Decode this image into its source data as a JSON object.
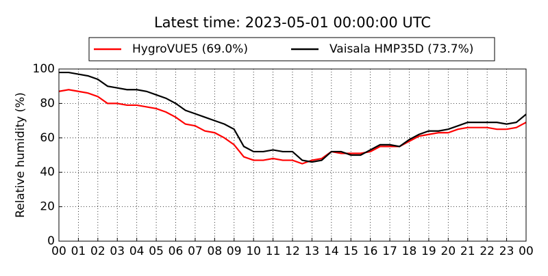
{
  "chart_data": {
    "type": "line",
    "title": "Latest time: 2023-05-01 00:00:00 UTC",
    "ylabel": "Relative humidity (%)",
    "x": [
      0,
      0.5,
      1,
      1.5,
      2,
      2.5,
      3,
      3.5,
      4,
      4.5,
      5,
      5.5,
      6,
      6.5,
      7,
      7.5,
      8,
      8.5,
      9,
      9.5,
      10,
      10.5,
      11,
      11.5,
      12,
      12.5,
      13,
      13.5,
      14,
      14.5,
      15,
      15.5,
      16,
      16.5,
      17,
      17.5,
      18,
      18.5,
      19,
      19.5,
      20,
      20.5,
      21,
      21.5,
      22,
      22.5,
      23,
      23.5,
      24
    ],
    "series": [
      {
        "name": "HygroVUE5 (69.0%)",
        "color": "#ff0000",
        "values": [
          87,
          88,
          87,
          86,
          84,
          80,
          80,
          79,
          79,
          78,
          77,
          75,
          72,
          68,
          67,
          64,
          63,
          60,
          56,
          49,
          47,
          47,
          48,
          47,
          47,
          45,
          47,
          48,
          52,
          51,
          51,
          51,
          52,
          55,
          55,
          55,
          58,
          61,
          62,
          63,
          63,
          65,
          66,
          66,
          66,
          65,
          65,
          66,
          69
        ]
      },
      {
        "name": "Vaisala HMP35D (73.7%)",
        "color": "#000000",
        "values": [
          98,
          98,
          97,
          96,
          94,
          90,
          89,
          88,
          88,
          87,
          85,
          83,
          80,
          76,
          74,
          72,
          70,
          68,
          65,
          55,
          52,
          52,
          53,
          52,
          52,
          47,
          46,
          47,
          52,
          52,
          50,
          50,
          53,
          56,
          56,
          55,
          59,
          62,
          64,
          64,
          65,
          67,
          69,
          69,
          69,
          69,
          68,
          69,
          73.7
        ]
      }
    ],
    "xlim": [
      0,
      24
    ],
    "xticks": [
      {
        "value": 0,
        "label": "00"
      },
      {
        "value": 1,
        "label": "01"
      },
      {
        "value": 2,
        "label": "02"
      },
      {
        "value": 3,
        "label": "03"
      },
      {
        "value": 4,
        "label": "04"
      },
      {
        "value": 5,
        "label": "05"
      },
      {
        "value": 6,
        "label": "06"
      },
      {
        "value": 7,
        "label": "07"
      },
      {
        "value": 8,
        "label": "08"
      },
      {
        "value": 9,
        "label": "09"
      },
      {
        "value": 10,
        "label": "10"
      },
      {
        "value": 11,
        "label": "11"
      },
      {
        "value": 12,
        "label": "12"
      },
      {
        "value": 13,
        "label": "13"
      },
      {
        "value": 14,
        "label": "14"
      },
      {
        "value": 15,
        "label": "15"
      },
      {
        "value": 16,
        "label": "16"
      },
      {
        "value": 17,
        "label": "17"
      },
      {
        "value": 18,
        "label": "18"
      },
      {
        "value": 19,
        "label": "19"
      },
      {
        "value": 20,
        "label": "20"
      },
      {
        "value": 21,
        "label": "21"
      },
      {
        "value": 22,
        "label": "22"
      },
      {
        "value": 23,
        "label": "23"
      },
      {
        "value": 24,
        "label": "00"
      }
    ],
    "ylim": [
      0,
      100
    ],
    "yticks": [
      0,
      20,
      40,
      60,
      80,
      100
    ],
    "grid": true
  }
}
